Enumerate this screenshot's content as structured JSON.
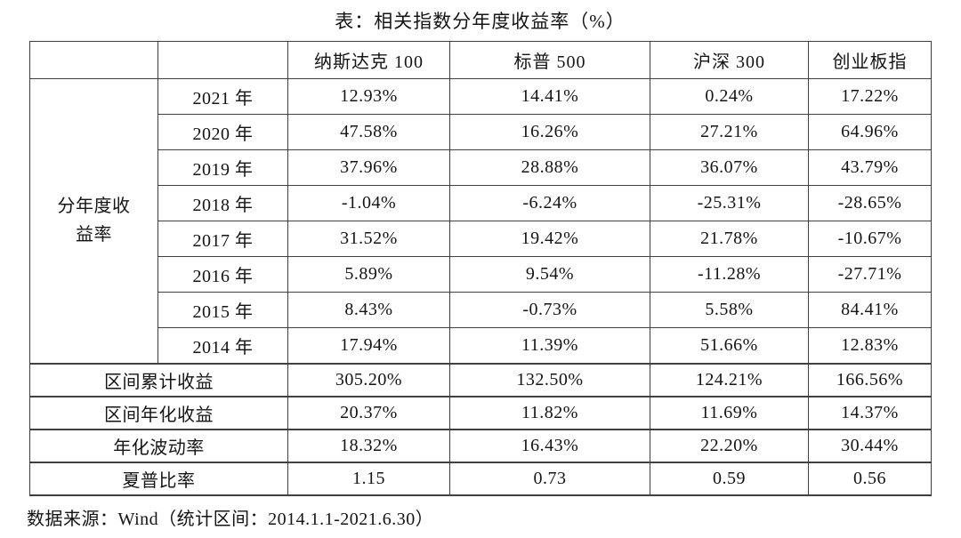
{
  "title": "表：相关指数分年度收益率（%）",
  "table": {
    "column_headers": [
      "",
      "",
      "纳斯达克 100",
      "标普 500",
      "沪深 300",
      "创业板指"
    ],
    "row_group_label": "分年度收\n益率",
    "year_rows": [
      {
        "year": "2021 年",
        "values": [
          "12.93%",
          "14.41%",
          "0.24%",
          "17.22%"
        ]
      },
      {
        "year": "2020 年",
        "values": [
          "47.58%",
          "16.26%",
          "27.21%",
          "64.96%"
        ]
      },
      {
        "year": "2019 年",
        "values": [
          "37.96%",
          "28.88%",
          "36.07%",
          "43.79%"
        ]
      },
      {
        "year": "2018 年",
        "values": [
          "-1.04%",
          "-6.24%",
          "-25.31%",
          "-28.65%"
        ]
      },
      {
        "year": "2017 年",
        "values": [
          "31.52%",
          "19.42%",
          "21.78%",
          "-10.67%"
        ]
      },
      {
        "year": "2016 年",
        "values": [
          "5.89%",
          "9.54%",
          "-11.28%",
          "-27.71%"
        ]
      },
      {
        "year": "2015 年",
        "values": [
          "8.43%",
          "-0.73%",
          "5.58%",
          "84.41%"
        ]
      },
      {
        "year": "2014 年",
        "values": [
          "17.94%",
          "11.39%",
          "51.66%",
          "12.83%"
        ]
      }
    ],
    "summary_rows": [
      {
        "label": "区间累计收益",
        "values": [
          "305.20%",
          "132.50%",
          "124.21%",
          "166.56%"
        ]
      },
      {
        "label": "区间年化收益",
        "values": [
          "20.37%",
          "11.82%",
          "11.69%",
          "14.37%"
        ]
      },
      {
        "label": "年化波动率",
        "values": [
          "18.32%",
          "16.43%",
          "22.20%",
          "30.44%"
        ]
      },
      {
        "label": "夏普比率",
        "values": [
          "1.15",
          "0.73",
          "0.59",
          "0.56"
        ]
      }
    ]
  },
  "footer": "数据来源：Wind（统计区间：2014.1.1-2021.6.30）",
  "colors": {
    "text": "#141414",
    "border": "#404040",
    "background": "#ffffff"
  }
}
